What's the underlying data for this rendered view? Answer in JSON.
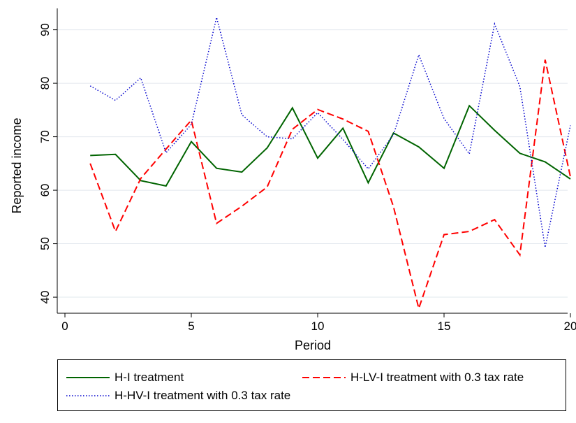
{
  "chart_data": {
    "type": "line",
    "title": "",
    "xlabel": "Period",
    "ylabel": "Reported income",
    "xlim": [
      0,
      20
    ],
    "ylim": [
      37,
      94
    ],
    "xticks": [
      0,
      5,
      10,
      15,
      20
    ],
    "yticks": [
      40,
      50,
      60,
      70,
      80,
      90
    ],
    "grid": "horizontal",
    "legend_position": "bottom",
    "x": [
      1,
      2,
      3,
      4,
      5,
      6,
      7,
      8,
      9,
      10,
      11,
      12,
      13,
      14,
      15,
      16,
      17,
      18,
      19,
      20
    ],
    "series": [
      {
        "name": "H-I treatment",
        "color": "#006400",
        "style": "solid",
        "values": [
          66.5,
          66.7,
          61.8,
          60.8,
          69.1,
          64.1,
          63.4,
          67.9,
          75.4,
          66.0,
          71.6,
          61.4,
          70.7,
          68.1,
          64.1,
          75.8,
          71.2,
          66.9,
          65.3,
          62.1
        ]
      },
      {
        "name": "H-LV-I treatment with 0.3 tax rate",
        "color": "#ff0000",
        "style": "dashed",
        "values": [
          65.0,
          52.3,
          62.2,
          67.7,
          73.1,
          53.8,
          57.0,
          60.6,
          71.4,
          75.1,
          73.3,
          71.0,
          56.9,
          37.9,
          51.7,
          52.3,
          54.5,
          47.9,
          84.4,
          62.5
        ]
      },
      {
        "name": "H-HV-I treatment with 0.3 tax rate",
        "color": "#0000cd",
        "style": "dotted",
        "values": [
          79.5,
          76.8,
          81.0,
          67.0,
          72.3,
          92.3,
          74.1,
          70.0,
          69.6,
          74.5,
          69.5,
          64.0,
          70.4,
          85.3,
          73.4,
          66.8,
          91.1,
          79.4,
          49.3,
          72.1
        ]
      }
    ]
  }
}
